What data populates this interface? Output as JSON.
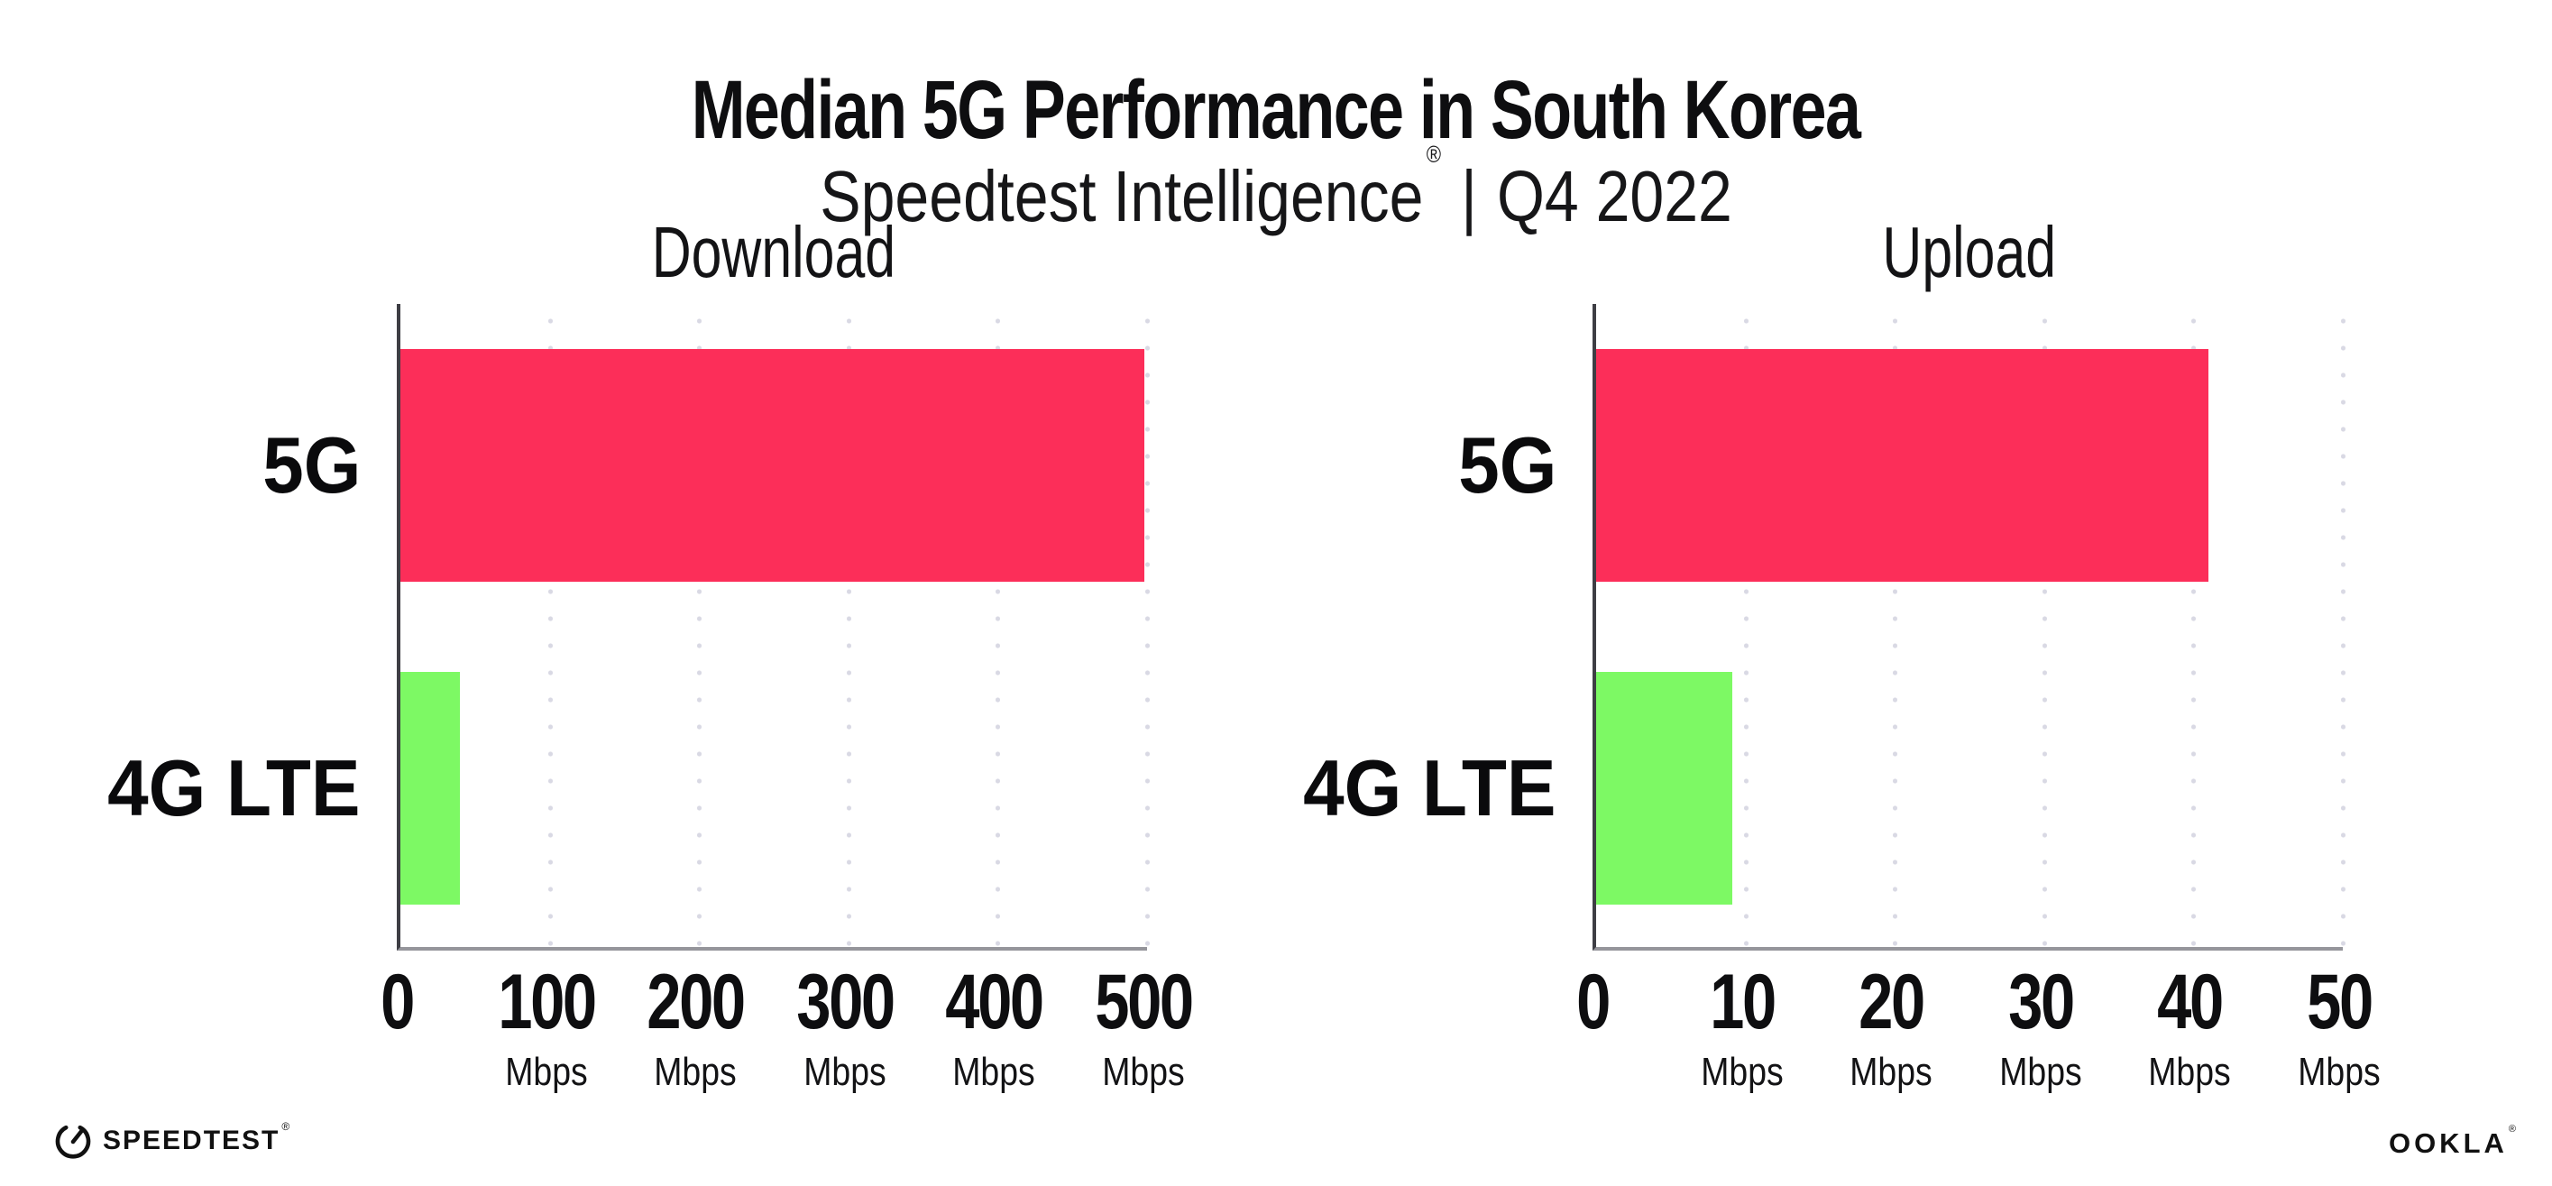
{
  "header": {
    "title": "Median 5G Performance in South Korea",
    "subtitle": {
      "brand": "Speedtest Intelligence",
      "registered_mark": "®",
      "divider": "|",
      "period": "Q4 2022"
    }
  },
  "footer": {
    "speedtest_wordmark": "SPEEDTEST",
    "speedtest_mark": "®",
    "ookla_wordmark": "OOKLA",
    "ookla_mark": "®"
  },
  "colors": {
    "bar_5g": "#FC2E59",
    "bar_4g_lte": "#7DF964",
    "gridline": "#D9D9E4",
    "y_axis": "#3E3E44",
    "x_axis": "#95959B",
    "text": "#0E0E10"
  },
  "chart_data": [
    {
      "type": "bar",
      "orientation": "horizontal",
      "title": "Download",
      "categories": [
        "5G",
        "4G LTE"
      ],
      "values": [
        498,
        40
      ],
      "unit": "Mbps",
      "xlim": [
        0,
        500
      ],
      "xticks": [
        0,
        100,
        200,
        300,
        400,
        500
      ],
      "xtick_labels": [
        {
          "value": "0",
          "unit": ""
        },
        {
          "value": "100",
          "unit": "Mbps"
        },
        {
          "value": "200",
          "unit": "Mbps"
        },
        {
          "value": "300",
          "unit": "Mbps"
        },
        {
          "value": "400",
          "unit": "Mbps"
        },
        {
          "value": "500",
          "unit": "Mbps"
        }
      ],
      "bar_colors": [
        "#FC2E59",
        "#7DF964"
      ],
      "grid": "vertical-dotted",
      "legend": false,
      "xlabel": "",
      "ylabel": ""
    },
    {
      "type": "bar",
      "orientation": "horizontal",
      "title": "Upload",
      "categories": [
        "5G",
        "4G LTE"
      ],
      "values": [
        41,
        9.1
      ],
      "unit": "Mbps",
      "xlim": [
        0,
        50
      ],
      "xticks": [
        0,
        10,
        20,
        30,
        40,
        50
      ],
      "xtick_labels": [
        {
          "value": "0",
          "unit": ""
        },
        {
          "value": "10",
          "unit": "Mbps"
        },
        {
          "value": "20",
          "unit": "Mbps"
        },
        {
          "value": "30",
          "unit": "Mbps"
        },
        {
          "value": "40",
          "unit": "Mbps"
        },
        {
          "value": "50",
          "unit": "Mbps"
        }
      ],
      "bar_colors": [
        "#FC2E59",
        "#7DF964"
      ],
      "grid": "vertical-dotted",
      "legend": false,
      "xlabel": "",
      "ylabel": ""
    }
  ]
}
